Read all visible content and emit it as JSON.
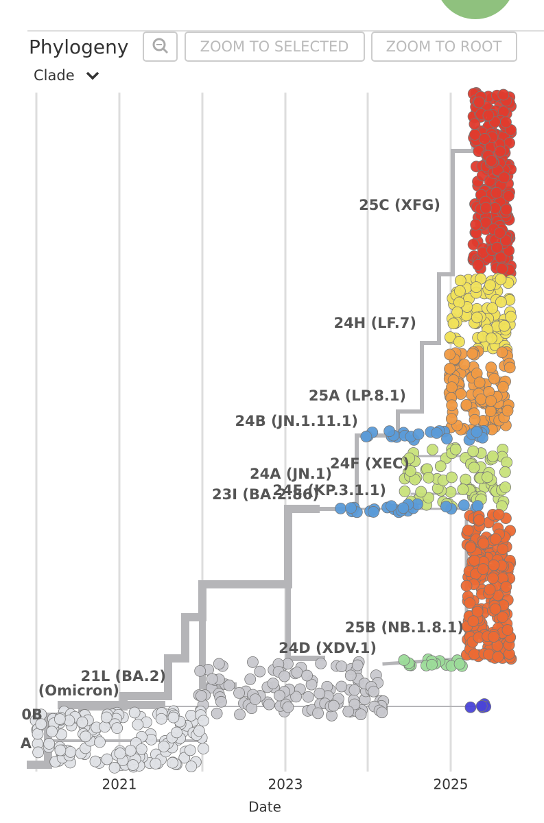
{
  "header": {
    "title": "Phylogeny",
    "buttons": [
      "ZOOM TO SELECTED",
      "ZOOM TO ROOT"
    ],
    "color_by": "Clade"
  },
  "clades": [
    "25C (XFG)",
    "24H (LF.7)",
    "25A (LP.8.1)",
    "24B (JN.1.11.1)",
    "24F (XEC)",
    "24A (JN.1)",
    "24E (KP.3.1.1)",
    "23I (BA.2.86)",
    "25B (NB.1.8.1)",
    "24D (XDV.1)",
    "21L (BA.2)",
    "(Omicron)",
    "0B",
    "A"
  ],
  "x_axis": {
    "ticks": [
      "2021",
      "2023",
      "2025"
    ],
    "label": "Date"
  }
}
